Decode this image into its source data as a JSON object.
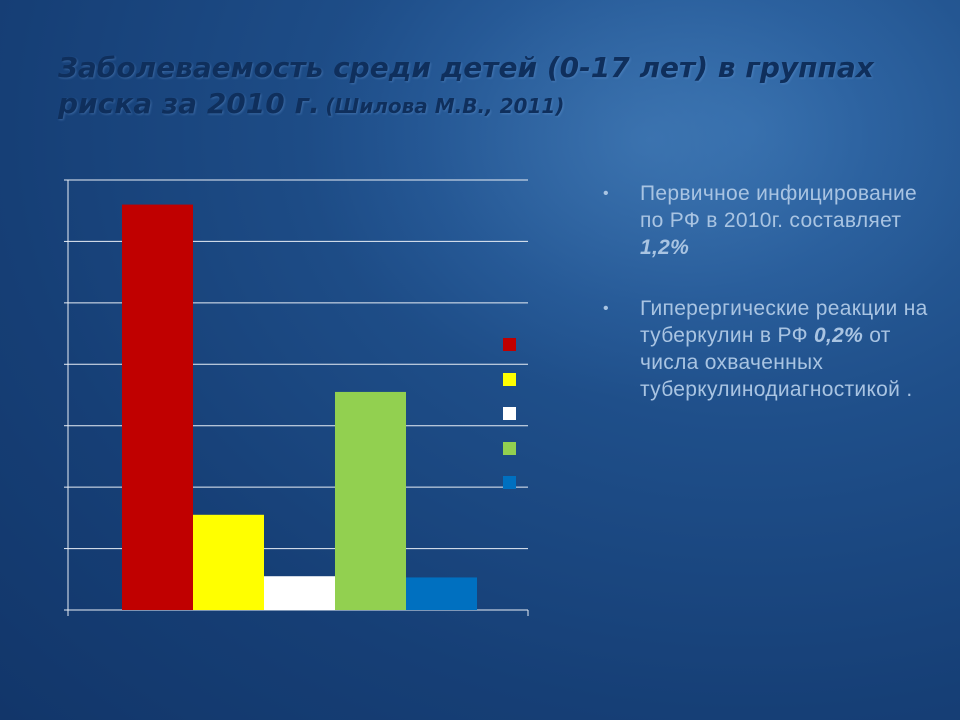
{
  "title": {
    "main_line1": "Заболеваемость среди детей (0-17 лет) в группах",
    "main_line2": "риска за 2010 г.",
    "citation": "(Шилова М.В., 2011)"
  },
  "bullets": [
    {
      "text": "Первичное инфицирование по РФ в 2010г. составляет ",
      "emphasis": "1,2%",
      "after": ""
    },
    {
      "text": "Гиперергические реакции на туберкулин в РФ ",
      "emphasis": "0,2%",
      "after": " от числа охваченных туберкулинодиагностикой ."
    }
  ],
  "colors": {
    "bar1": "#c00000",
    "bar2": "#ffff00",
    "bar3": "#ffffff",
    "bar4": "#92d050",
    "bar5": "#0070c0",
    "grid": "#e8eef6",
    "bullet_text": "#a9c4e2"
  },
  "chart_data": {
    "type": "bar",
    "categories": [
      "",
      "",
      "",
      "",
      ""
    ],
    "values": [
      6.6,
      1.55,
      0.55,
      3.55,
      0.53
    ],
    "ylim": [
      0,
      7
    ],
    "grid": true,
    "legend": "right",
    "series_colors": [
      "#c00000",
      "#ffff00",
      "#ffffff",
      "#92d050",
      "#0070c0"
    ]
  }
}
